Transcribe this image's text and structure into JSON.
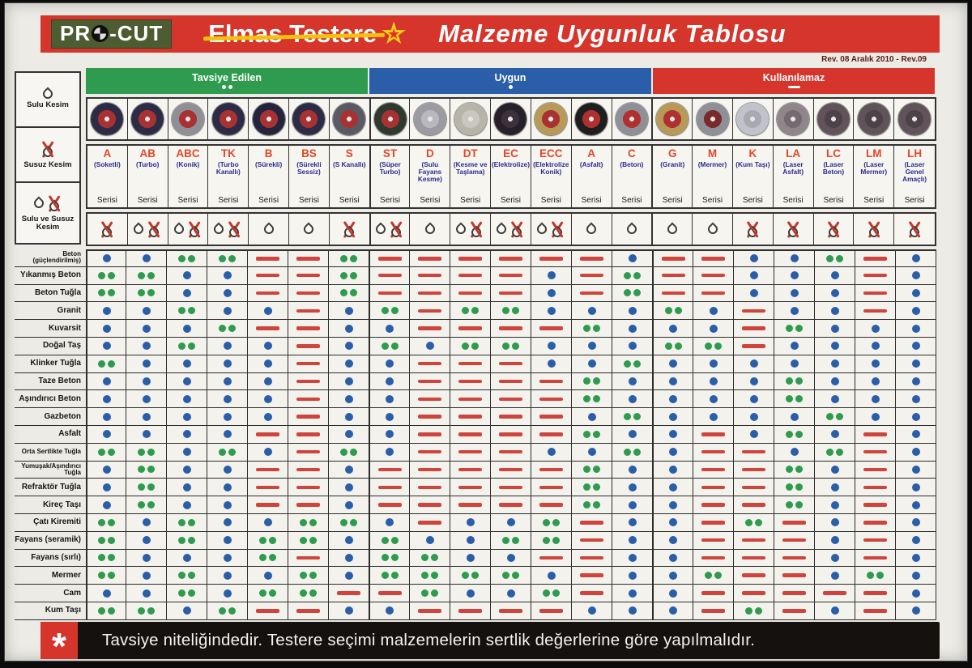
{
  "header": {
    "logo_prefix": "PR",
    "logo_suffix": "-CUT",
    "struck_title": "Elmas Testere",
    "title": "Malzeme Uygunluk Tablosu",
    "revision": "Rev. 08 Aralık 2010 - Rev.09"
  },
  "legend": [
    {
      "label": "Tavsiye Edilen",
      "symbol": "double-dot",
      "color": "#2e9b4e"
    },
    {
      "label": "Uygun",
      "symbol": "dot",
      "color": "#2a5ea8"
    },
    {
      "label": "Kullanılamaz",
      "symbol": "dash",
      "color": "#d5352b"
    }
  ],
  "cutting_modes": [
    {
      "label": "Sulu Kesim",
      "icon": "wet"
    },
    {
      "label": "Susuz Kesim",
      "icon": "dry"
    },
    {
      "label": "Sulu ve Susuz Kesim",
      "icon": "both"
    }
  ],
  "columns": [
    {
      "code": "A",
      "name": "(Soketli)",
      "serisi": "Serisi",
      "water": "dry",
      "blade_base": "#2c2c47",
      "blade_accent": "#a83232"
    },
    {
      "code": "AB",
      "name": "(Turbo)",
      "serisi": "Serisi",
      "water": "both",
      "blade_base": "#2c2c47",
      "blade_accent": "#a83232"
    },
    {
      "code": "ABC",
      "name": "(Konik)",
      "serisi": "Serisi",
      "water": "both",
      "blade_base": "#8f8f97",
      "blade_accent": "#a83232"
    },
    {
      "code": "TK",
      "name": "(Turbo Kanallı)",
      "serisi": "Serisi",
      "water": "both",
      "blade_base": "#2c2c47",
      "blade_accent": "#a83232"
    },
    {
      "code": "B",
      "name": "(Sürekli)",
      "serisi": "Serisi",
      "water": "wet",
      "blade_base": "#24243c",
      "blade_accent": "#a83232"
    },
    {
      "code": "BS",
      "name": "(Sürekli Sessiz)",
      "serisi": "Serisi",
      "water": "wet",
      "blade_base": "#2c2c47",
      "blade_accent": "#a83232"
    },
    {
      "code": "S",
      "name": "(S Kanallı)",
      "serisi": "Serisi",
      "water": "dry",
      "blade_base": "#5a5a64",
      "blade_accent": "#a83232"
    },
    {
      "code": "ST",
      "name": "(Süper Turbo)",
      "serisi": "Serisi",
      "water": "both",
      "blade_base": "#2f3a2f",
      "blade_accent": "#a83232"
    },
    {
      "code": "D",
      "name": "(Sulu Fayans Kesme)",
      "serisi": "Serisi",
      "water": "wet",
      "blade_base": "#9b9ba1",
      "blade_accent": "#b8b8be"
    },
    {
      "code": "DT",
      "name": "(Kesme ve Taşlama)",
      "serisi": "Serisi",
      "water": "both",
      "blade_base": "#b7b4aa",
      "blade_accent": "#cac7bd"
    },
    {
      "code": "EC",
      "name": "(Elektrolize)",
      "serisi": "Serisi",
      "water": "both",
      "blade_base": "#27202a",
      "blade_accent": "#3c323e"
    },
    {
      "code": "ECC",
      "name": "(Elektrolize Konik)",
      "serisi": "Serisi",
      "water": "both",
      "blade_base": "#b79a57",
      "blade_accent": "#a83232"
    },
    {
      "code": "A",
      "name": "(Asfalt)",
      "serisi": "Serisi",
      "water": "wet",
      "blade_base": "#1e1e1e",
      "blade_accent": "#b03030"
    },
    {
      "code": "C",
      "name": "(Beton)",
      "serisi": "Serisi",
      "water": "wet",
      "blade_base": "#8f8f97",
      "blade_accent": "#b03030"
    },
    {
      "code": "G",
      "name": "(Granit)",
      "serisi": "Serisi",
      "water": "wet",
      "blade_base": "#b79a57",
      "blade_accent": "#b03030"
    },
    {
      "code": "M",
      "name": "(Mermer)",
      "serisi": "Serisi",
      "water": "wet",
      "blade_base": "#8f8f97",
      "blade_accent": "#7a2a2a"
    },
    {
      "code": "K",
      "name": "(Kum Taşı)",
      "serisi": "Serisi",
      "water": "dry",
      "blade_base": "#c2c2ca",
      "blade_accent": "#a9a9b2"
    },
    {
      "code": "LA",
      "name": "(Laser Asfalt)",
      "serisi": "Serisi",
      "water": "dry",
      "blade_base": "#8f858a",
      "blade_accent": "#746b70"
    },
    {
      "code": "LC",
      "name": "(Laser Beton)",
      "serisi": "Serisi",
      "water": "dry",
      "blade_base": "#60545a",
      "blade_accent": "#4c4248"
    },
    {
      "code": "LM",
      "name": "(Laser Mermer)",
      "serisi": "Serisi",
      "water": "dry",
      "blade_base": "#60545a",
      "blade_accent": "#4c4248"
    },
    {
      "code": "LH",
      "name": "(Laser Genel Amaçlı)",
      "serisi": "Serisi",
      "water": "dry",
      "blade_base": "#60545a",
      "blade_accent": "#4c4248"
    }
  ],
  "rows": [
    {
      "label": "Beton (güçlendirilmiş)",
      "cells": [
        "B",
        "B",
        "G",
        "G",
        "R",
        "R",
        "G",
        "R",
        "R",
        "R",
        "R",
        "R",
        "R",
        "B",
        "R",
        "R",
        "B",
        "B",
        "G",
        "R",
        "B"
      ]
    },
    {
      "label": "Yıkanmış Beton",
      "cells": [
        "G",
        "G",
        "B",
        "B",
        "R",
        "R",
        "G",
        "R",
        "R",
        "R",
        "R",
        "B",
        "R",
        "G",
        "R",
        "R",
        "B",
        "B",
        "B",
        "R",
        "B"
      ]
    },
    {
      "label": "Beton Tuğla",
      "cells": [
        "G",
        "G",
        "B",
        "B",
        "R",
        "R",
        "G",
        "R",
        "R",
        "R",
        "R",
        "B",
        "R",
        "G",
        "R",
        "R",
        "B",
        "B",
        "B",
        "R",
        "B"
      ]
    },
    {
      "label": "Granit",
      "cells": [
        "B",
        "B",
        "G",
        "B",
        "B",
        "R",
        "B",
        "G",
        "R",
        "G",
        "G",
        "B",
        "B",
        "B",
        "G",
        "B",
        "R",
        "B",
        "B",
        "R",
        "B"
      ]
    },
    {
      "label": "Kuvarsit",
      "cells": [
        "B",
        "B",
        "B",
        "G",
        "R",
        "R",
        "B",
        "B",
        "R",
        "R",
        "R",
        "R",
        "G",
        "B",
        "B",
        "B",
        "R",
        "G",
        "B",
        "B",
        "B"
      ]
    },
    {
      "label": "Doğal Taş",
      "cells": [
        "B",
        "B",
        "G",
        "B",
        "B",
        "R",
        "B",
        "G",
        "B",
        "G",
        "G",
        "B",
        "B",
        "B",
        "G",
        "G",
        "R",
        "B",
        "B",
        "B",
        "B"
      ]
    },
    {
      "label": "Klinker Tuğla",
      "cells": [
        "G",
        "B",
        "B",
        "B",
        "B",
        "R",
        "B",
        "B",
        "R",
        "R",
        "R",
        "B",
        "B",
        "G",
        "B",
        "B",
        "B",
        "B",
        "B",
        "B",
        "B"
      ]
    },
    {
      "label": "Taze Beton",
      "cells": [
        "B",
        "B",
        "B",
        "B",
        "B",
        "R",
        "B",
        "B",
        "R",
        "R",
        "R",
        "R",
        "G",
        "B",
        "B",
        "B",
        "B",
        "G",
        "B",
        "B",
        "B"
      ]
    },
    {
      "label": "Aşındırıcı Beton",
      "cells": [
        "B",
        "B",
        "B",
        "B",
        "B",
        "R",
        "B",
        "B",
        "R",
        "R",
        "R",
        "R",
        "G",
        "B",
        "B",
        "B",
        "B",
        "G",
        "B",
        "B",
        "B"
      ]
    },
    {
      "label": "Gazbeton",
      "cells": [
        "B",
        "B",
        "B",
        "B",
        "B",
        "R",
        "B",
        "B",
        "R",
        "R",
        "R",
        "R",
        "B",
        "G",
        "B",
        "B",
        "B",
        "B",
        "G",
        "B",
        "B"
      ]
    },
    {
      "label": "Asfalt",
      "cells": [
        "B",
        "B",
        "B",
        "B",
        "R",
        "R",
        "B",
        "B",
        "R",
        "R",
        "R",
        "R",
        "G",
        "B",
        "B",
        "R",
        "B",
        "G",
        "B",
        "R",
        "B"
      ]
    },
    {
      "label": "Orta Sertlikte Tuğla",
      "cells": [
        "G",
        "G",
        "B",
        "G",
        "B",
        "R",
        "G",
        "B",
        "R",
        "R",
        "R",
        "B",
        "B",
        "G",
        "B",
        "R",
        "R",
        "B",
        "G",
        "R",
        "B"
      ]
    },
    {
      "label": "Yumuşak/Aşındırıcı Tuğla",
      "cells": [
        "B",
        "G",
        "B",
        "B",
        "R",
        "R",
        "B",
        "R",
        "R",
        "R",
        "R",
        "R",
        "G",
        "B",
        "B",
        "R",
        "R",
        "G",
        "B",
        "R",
        "B"
      ]
    },
    {
      "label": "Refraktör Tuğla",
      "cells": [
        "B",
        "G",
        "B",
        "B",
        "R",
        "R",
        "B",
        "R",
        "R",
        "R",
        "R",
        "R",
        "G",
        "B",
        "B",
        "R",
        "R",
        "G",
        "B",
        "R",
        "B"
      ]
    },
    {
      "label": "Kireç Taşı",
      "cells": [
        "B",
        "G",
        "B",
        "B",
        "R",
        "R",
        "B",
        "R",
        "R",
        "R",
        "R",
        "R",
        "G",
        "B",
        "B",
        "R",
        "R",
        "G",
        "B",
        "R",
        "B"
      ]
    },
    {
      "label": "Çatı Kiremiti",
      "cells": [
        "G",
        "B",
        "G",
        "B",
        "B",
        "G",
        "G",
        "B",
        "R",
        "B",
        "B",
        "G",
        "R",
        "B",
        "B",
        "R",
        "G",
        "R",
        "B",
        "R",
        "B"
      ]
    },
    {
      "label": "Fayans (seramik)",
      "cells": [
        "G",
        "B",
        "G",
        "B",
        "G",
        "G",
        "B",
        "G",
        "B",
        "B",
        "G",
        "G",
        "R",
        "B",
        "B",
        "R",
        "R",
        "R",
        "B",
        "R",
        "B"
      ]
    },
    {
      "label": "Fayans (sırlı)",
      "cells": [
        "G",
        "B",
        "B",
        "B",
        "G",
        "R",
        "B",
        "G",
        "G",
        "B",
        "B",
        "R",
        "R",
        "B",
        "B",
        "R",
        "R",
        "R",
        "B",
        "R",
        "B"
      ]
    },
    {
      "label": "Mermer",
      "cells": [
        "G",
        "B",
        "G",
        "B",
        "B",
        "G",
        "B",
        "G",
        "G",
        "G",
        "G",
        "B",
        "R",
        "B",
        "B",
        "G",
        "R",
        "R",
        "B",
        "G",
        "B"
      ]
    },
    {
      "label": "Cam",
      "cells": [
        "B",
        "B",
        "G",
        "B",
        "G",
        "G",
        "R",
        "R",
        "G",
        "B",
        "B",
        "G",
        "R",
        "B",
        "B",
        "R",
        "R",
        "R",
        "R",
        "R",
        "B"
      ]
    },
    {
      "label": "Kum Taşı",
      "cells": [
        "G",
        "G",
        "B",
        "G",
        "R",
        "R",
        "B",
        "B",
        "R",
        "R",
        "R",
        "R",
        "B",
        "B",
        "B",
        "R",
        "G",
        "R",
        "B",
        "R",
        "B"
      ]
    }
  ],
  "footer": {
    "mark": "*",
    "text": "Tavsiye niteliğindedir. Testere seçimi malzemelerin sertlik değerlerine göre yapılmalıdır."
  }
}
